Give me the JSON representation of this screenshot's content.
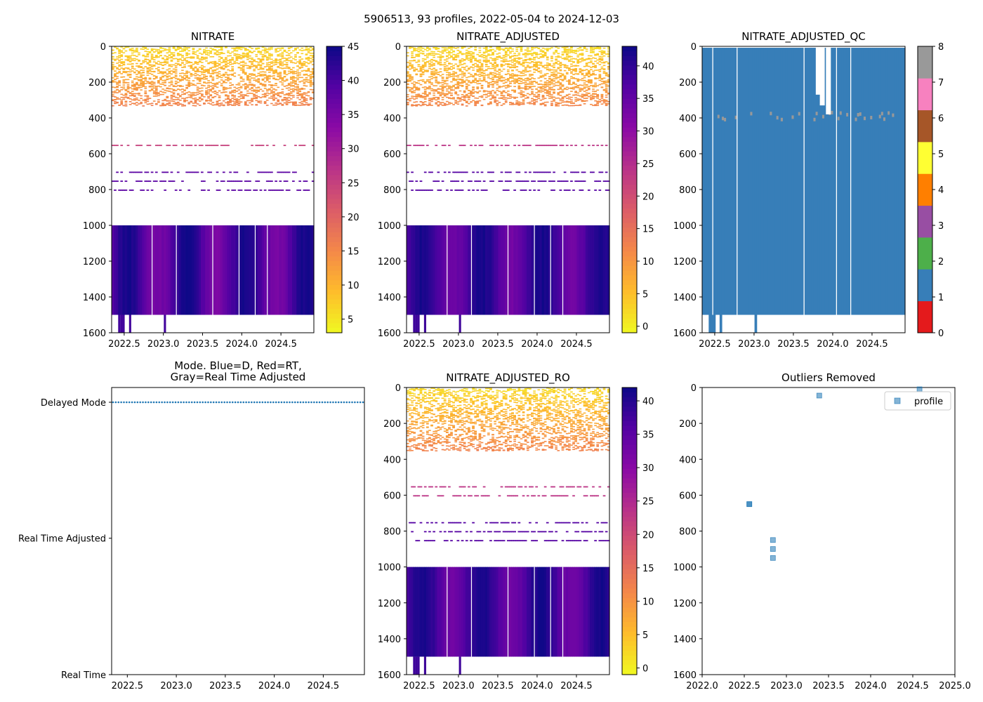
{
  "suptitle": "5906513, 93 profiles, 2022-05-04 to 2024-12-03",
  "chart_data": [
    {
      "type": "heatmap",
      "title": "NITRATE",
      "xlim": [
        2022.34,
        2024.92
      ],
      "ylim": [
        1600,
        0
      ],
      "xticks": [
        "2022.5",
        "2023.0",
        "2023.5",
        "2024.0",
        "2024.5"
      ],
      "yticks": [
        "0",
        "200",
        "400",
        "600",
        "800",
        "1000",
        "1200",
        "1400",
        "1600"
      ],
      "colormap": "plasma_r",
      "colorbar_range": [
        3,
        45
      ],
      "colorbar_ticks": [
        "5",
        "10",
        "15",
        "20",
        "25",
        "30",
        "35",
        "40",
        "45"
      ],
      "deep_block_depth": [
        1000,
        1500
      ],
      "scatter_levels_m": [
        550,
        700,
        750,
        800
      ],
      "surface_range_m": [
        0,
        330
      ]
    },
    {
      "type": "heatmap",
      "title": "NITRATE_ADJUSTED",
      "xlim": [
        2022.34,
        2024.92
      ],
      "ylim": [
        1600,
        0
      ],
      "xticks": [
        "2022.5",
        "2023.0",
        "2023.5",
        "2024.0",
        "2024.5"
      ],
      "yticks": [
        "0",
        "200",
        "400",
        "600",
        "800",
        "1000",
        "1200",
        "1400",
        "1600"
      ],
      "colormap": "plasma_r",
      "colorbar_range": [
        -1,
        43
      ],
      "colorbar_ticks": [
        "0",
        "5",
        "10",
        "15",
        "20",
        "25",
        "30",
        "35",
        "40"
      ],
      "deep_block_depth": [
        1000,
        1500
      ],
      "scatter_levels_m": [
        550,
        700,
        750,
        800
      ],
      "surface_range_m": [
        0,
        330
      ]
    },
    {
      "type": "heatmap",
      "title": "NITRATE_ADJUSTED_QC",
      "xlim": [
        2022.34,
        2024.92
      ],
      "ylim": [
        1600,
        0
      ],
      "xticks": [
        "2022.5",
        "2023.0",
        "2023.5",
        "2024.0",
        "2024.5"
      ],
      "yticks": [
        "0",
        "200",
        "400",
        "600",
        "800",
        "1000",
        "1200",
        "1400",
        "1600"
      ],
      "colorbar_ticks": [
        "0",
        "1",
        "2",
        "3",
        "4",
        "5",
        "6",
        "7",
        "8"
      ],
      "colorbar_colors": [
        "#e41a1c",
        "#377eb8",
        "#4daf4a",
        "#984ea3",
        "#ff7f00",
        "#ffff33",
        "#a65628",
        "#f781bf",
        "#999999"
      ],
      "dominant_flag": 1
    },
    {
      "type": "scatter",
      "title_lines": [
        "Mode. Blue=D, Red=RT,",
        "Gray=Real Time Adjusted"
      ],
      "xlim": [
        2022.34,
        2024.92
      ],
      "xticks": [
        "2022.5",
        "2023.0",
        "2023.5",
        "2024.0",
        "2024.5"
      ],
      "yticks": [
        "Real Time",
        "Real Time Adjusted",
        "Delayed Mode"
      ],
      "y_value_all_profiles": "Delayed Mode",
      "profile_count": 93
    },
    {
      "type": "heatmap",
      "title": "NITRATE_ADJUSTED_RO",
      "xlim": [
        2022.34,
        2024.92
      ],
      "ylim": [
        1600,
        0
      ],
      "xticks": [
        "2022.5",
        "2023.0",
        "2023.5",
        "2024.0",
        "2024.5"
      ],
      "yticks": [
        "0",
        "200",
        "400",
        "600",
        "800",
        "1000",
        "1200",
        "1400",
        "1600"
      ],
      "colormap": "plasma_r",
      "colorbar_range": [
        -1,
        42
      ],
      "colorbar_ticks": [
        "0",
        "5",
        "10",
        "15",
        "20",
        "25",
        "30",
        "35",
        "40"
      ],
      "deep_block_depth": [
        1000,
        1500
      ],
      "scatter_levels_m": [
        550,
        600,
        750,
        800,
        850
      ],
      "surface_range_m": [
        0,
        350
      ]
    },
    {
      "type": "scatter",
      "title": "Outliers Removed",
      "xlim": [
        2022.0,
        2025.0
      ],
      "ylim": [
        1600,
        0
      ],
      "xticks": [
        "2022.0",
        "2022.5",
        "2023.0",
        "2023.5",
        "2024.0",
        "2024.5",
        "2025.0"
      ],
      "yticks": [
        "0",
        "200",
        "400",
        "600",
        "800",
        "1000",
        "1200",
        "1400",
        "1600"
      ],
      "legend": [
        "profile"
      ],
      "legend_loc": "upper right",
      "points": [
        {
          "x": 2024.58,
          "y": 10
        },
        {
          "x": 2023.39,
          "y": 45
        },
        {
          "x": 2022.56,
          "y": 650
        },
        {
          "x": 2022.56,
          "y": 650
        },
        {
          "x": 2022.84,
          "y": 850
        },
        {
          "x": 2022.84,
          "y": 900
        },
        {
          "x": 2022.84,
          "y": 950
        }
      ]
    }
  ]
}
